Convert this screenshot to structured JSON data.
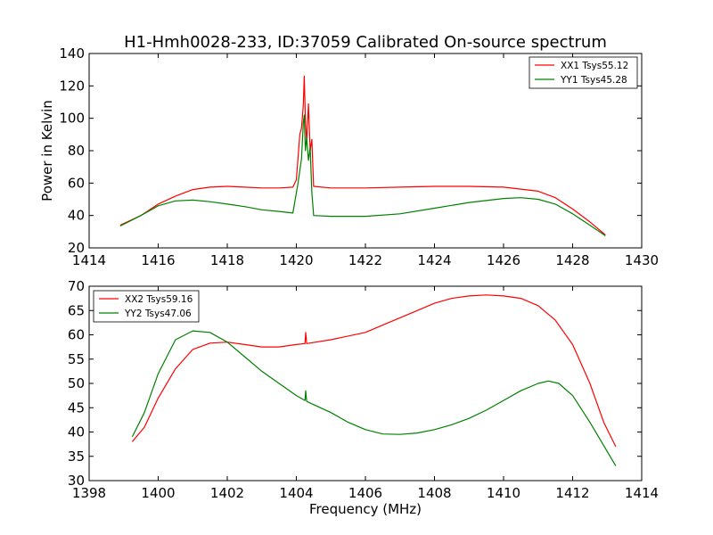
{
  "chart_data": [
    {
      "type": "line",
      "title": "H1-Hmh0028-233, ID:37059 Calibrated On-source spectrum",
      "xlabel": "",
      "ylabel": "Power in Kelvin",
      "xlim": [
        1414,
        1430
      ],
      "ylim": [
        20,
        140
      ],
      "xticks": [
        1414,
        1416,
        1418,
        1420,
        1422,
        1424,
        1426,
        1428,
        1430
      ],
      "yticks": [
        20,
        40,
        60,
        80,
        100,
        120,
        140
      ],
      "grid": false,
      "legend_position": "top-right",
      "series": [
        {
          "name": "XX1 Tsys55.12",
          "color": "#ff0000",
          "points": [
            [
              1414.9,
              34
            ],
            [
              1415.5,
              40
            ],
            [
              1416.0,
              47
            ],
            [
              1416.5,
              52
            ],
            [
              1417.0,
              56
            ],
            [
              1417.5,
              57.5
            ],
            [
              1418.0,
              58
            ],
            [
              1418.5,
              57.5
            ],
            [
              1419.0,
              57
            ],
            [
              1419.5,
              57
            ],
            [
              1419.9,
              57.5
            ],
            [
              1420.0,
              62
            ],
            [
              1420.1,
              90
            ],
            [
              1420.15,
              94
            ],
            [
              1420.2,
              108
            ],
            [
              1420.23,
              126
            ],
            [
              1420.26,
              100
            ],
            [
              1420.3,
              85
            ],
            [
              1420.35,
              109
            ],
            [
              1420.4,
              80
            ],
            [
              1420.45,
              87
            ],
            [
              1420.5,
              58
            ],
            [
              1421.0,
              57
            ],
            [
              1422.0,
              57
            ],
            [
              1423.0,
              57.5
            ],
            [
              1424.0,
              58
            ],
            [
              1425.0,
              58
            ],
            [
              1426.0,
              57.5
            ],
            [
              1427.0,
              55
            ],
            [
              1427.5,
              51
            ],
            [
              1428.0,
              44
            ],
            [
              1428.5,
              36
            ],
            [
              1428.95,
              28
            ]
          ]
        },
        {
          "name": "YY1 Tsys45.28",
          "color": "#008000",
          "points": [
            [
              1414.9,
              33.5
            ],
            [
              1415.5,
              40
            ],
            [
              1416.0,
              46
            ],
            [
              1416.5,
              49
            ],
            [
              1417.0,
              49.5
            ],
            [
              1417.5,
              48.5
            ],
            [
              1418.0,
              47
            ],
            [
              1418.5,
              45.5
            ],
            [
              1419.0,
              43.5
            ],
            [
              1419.5,
              42.5
            ],
            [
              1419.9,
              41.5
            ],
            [
              1420.05,
              60
            ],
            [
              1420.15,
              75
            ],
            [
              1420.2,
              97
            ],
            [
              1420.23,
              102
            ],
            [
              1420.26,
              80
            ],
            [
              1420.3,
              88
            ],
            [
              1420.35,
              74
            ],
            [
              1420.4,
              82
            ],
            [
              1420.45,
              54
            ],
            [
              1420.5,
              40
            ],
            [
              1421.0,
              39.5
            ],
            [
              1422.0,
              39.5
            ],
            [
              1423.0,
              41
            ],
            [
              1424.0,
              44.5
            ],
            [
              1425.0,
              48
            ],
            [
              1426.0,
              50.5
            ],
            [
              1426.5,
              51
            ],
            [
              1427.0,
              50
            ],
            [
              1427.5,
              47
            ],
            [
              1428.0,
              41
            ],
            [
              1428.5,
              34
            ],
            [
              1428.95,
              27.5
            ]
          ]
        }
      ]
    },
    {
      "type": "line",
      "title": "",
      "xlabel": "Frequency (MHz)",
      "ylabel": "",
      "xlim": [
        1398,
        1414
      ],
      "ylim": [
        30,
        70
      ],
      "xticks": [
        1398,
        1400,
        1402,
        1404,
        1406,
        1408,
        1410,
        1412,
        1414
      ],
      "yticks": [
        30,
        35,
        40,
        45,
        50,
        55,
        60,
        65,
        70
      ],
      "grid": false,
      "legend_position": "top-left",
      "series": [
        {
          "name": "XX2 Tsys59.16",
          "color": "#ff0000",
          "points": [
            [
              1399.25,
              38
            ],
            [
              1399.6,
              41
            ],
            [
              1400.0,
              47
            ],
            [
              1400.5,
              53
            ],
            [
              1401.0,
              57
            ],
            [
              1401.5,
              58.3
            ],
            [
              1402.0,
              58.5
            ],
            [
              1402.5,
              58
            ],
            [
              1403.0,
              57.5
            ],
            [
              1403.5,
              57.5
            ],
            [
              1404.0,
              58
            ],
            [
              1404.25,
              58.2
            ],
            [
              1404.27,
              60.5
            ],
            [
              1404.3,
              58.2
            ],
            [
              1405.0,
              59
            ],
            [
              1406.0,
              60.5
            ],
            [
              1406.5,
              62
            ],
            [
              1407.0,
              63.5
            ],
            [
              1407.5,
              65
            ],
            [
              1408.0,
              66.5
            ],
            [
              1408.5,
              67.5
            ],
            [
              1409.0,
              68
            ],
            [
              1409.5,
              68.2
            ],
            [
              1410.0,
              68
            ],
            [
              1410.5,
              67.5
            ],
            [
              1411.0,
              66
            ],
            [
              1411.5,
              63
            ],
            [
              1412.0,
              58
            ],
            [
              1412.5,
              50
            ],
            [
              1412.9,
              42
            ],
            [
              1413.25,
              37
            ]
          ]
        },
        {
          "name": "YY2 Tsys47.06",
          "color": "#008000",
          "points": [
            [
              1399.25,
              39
            ],
            [
              1399.6,
              44
            ],
            [
              1400.0,
              52
            ],
            [
              1400.5,
              59
            ],
            [
              1401.0,
              60.8
            ],
            [
              1401.5,
              60.5
            ],
            [
              1402.0,
              58.5
            ],
            [
              1402.5,
              55.5
            ],
            [
              1403.0,
              52.5
            ],
            [
              1403.5,
              50
            ],
            [
              1404.0,
              47.5
            ],
            [
              1404.25,
              46.5
            ],
            [
              1404.27,
              48.5
            ],
            [
              1404.3,
              46.3
            ],
            [
              1405.0,
              44
            ],
            [
              1405.5,
              42
            ],
            [
              1406.0,
              40.5
            ],
            [
              1406.5,
              39.6
            ],
            [
              1407.0,
              39.5
            ],
            [
              1407.5,
              39.8
            ],
            [
              1408.0,
              40.5
            ],
            [
              1408.5,
              41.5
            ],
            [
              1409.0,
              42.8
            ],
            [
              1409.5,
              44.5
            ],
            [
              1410.0,
              46.5
            ],
            [
              1410.5,
              48.5
            ],
            [
              1411.0,
              50
            ],
            [
              1411.3,
              50.5
            ],
            [
              1411.6,
              50
            ],
            [
              1412.0,
              47.5
            ],
            [
              1412.5,
              42
            ],
            [
              1413.0,
              36
            ],
            [
              1413.25,
              33
            ]
          ]
        }
      ]
    }
  ]
}
